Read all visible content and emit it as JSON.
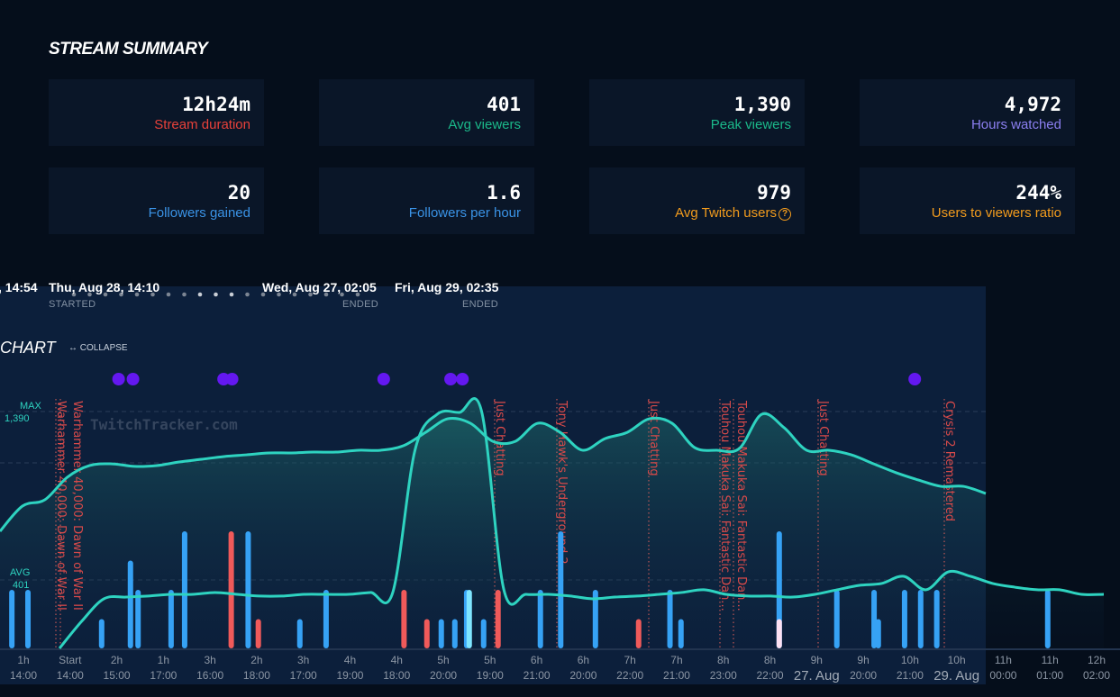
{
  "summary": {
    "title": "STREAM SUMMARY",
    "cards": [
      {
        "value": "12h24m",
        "label": "Stream duration",
        "color": "#e8413a"
      },
      {
        "value": "401",
        "label": "Avg viewers",
        "color": "#1bb98a"
      },
      {
        "value": "1,390",
        "label": "Peak viewers",
        "color": "#1bb98a"
      },
      {
        "value": "4,972",
        "label": "Hours watched",
        "color": "#8b7ff0"
      },
      {
        "value": "20",
        "label": "Followers gained",
        "color": "#3a93e6"
      },
      {
        "value": "1.6",
        "label": "Followers per hour",
        "color": "#3a93e6"
      },
      {
        "value": "979",
        "label": "Avg Twitch users",
        "color": "#f39c1d",
        "icon": "question-circle-icon",
        "icon_glyph": "?"
      },
      {
        "value": "244%",
        "label": "Users to viewers ratio",
        "color": "#f39c1d"
      }
    ]
  },
  "timeline": {
    "prev_end": ", 14:54",
    "started": {
      "date": "Thu, Aug 28, 14:10",
      "label": "STARTED"
    },
    "ended_1": {
      "date": "Wed, Aug 27, 02:05",
      "label": "ENDED"
    },
    "ended_2": {
      "date": "Fri, Aug 29, 02:35",
      "label": "ENDED"
    }
  },
  "chart_header": {
    "title": "CHART",
    "collapse_icon": "↔",
    "collapse_label": "COLLAPSE"
  },
  "watermark": "TwitchTracker.com",
  "chart_data": {
    "type": "line",
    "y_labels": {
      "max_label": "MAX",
      "max_value": "1,390",
      "avg_label": "AVG",
      "avg_value": "401"
    },
    "ylim": [
      0,
      1390
    ],
    "grid": "dashed horizontal",
    "colors": {
      "viewers": "#2ed3c0",
      "follow_bar": "#36a2f5",
      "red_bar": "#f05a5a",
      "pink_bar": "#fde0f2",
      "light_bar": "#7fe6ff",
      "event_dot": "#6418f0",
      "game_marker": "#d84a4a"
    },
    "series": [
      {
        "values": [
          687,
          835,
          872,
          1004,
          1073,
          1083,
          1068,
          1073,
          1094,
          1110,
          1126,
          1136,
          1147,
          1147,
          1152,
          1152,
          1163,
          1163,
          1189,
          1268,
          1348,
          1321,
          1215,
          1215,
          1321,
          1268,
          1163,
          1231,
          1268,
          1348,
          1321,
          1179,
          1163,
          1173,
          1374,
          1295,
          1163,
          1163,
          1136,
          1083,
          1031,
          988,
          951,
          951,
          909
        ]
      },
      {
        "values": [
          0,
          159,
          291,
          301,
          307,
          317,
          317,
          328,
          317,
          307,
          307,
          317,
          317,
          317,
          328,
          328,
          1163,
          1374,
          1385,
          1390,
          344,
          317,
          317,
          307,
          291,
          301,
          307,
          317,
          328,
          344,
          317,
          307,
          307,
          301,
          317,
          344,
          370,
          381,
          423,
          344,
          449,
          423,
          381,
          359,
          344,
          344,
          317,
          317
        ]
      }
    ],
    "bars": [
      {
        "hour": 0.14,
        "value": 5,
        "kind": "follow_bar"
      },
      {
        "hour": 0.33,
        "value": 5,
        "kind": "follow_bar"
      },
      {
        "hour": 1.2,
        "value": 2.5,
        "kind": "follow_bar"
      },
      {
        "hour": 1.54,
        "value": 7.5,
        "kind": "follow_bar"
      },
      {
        "hour": 1.63,
        "value": 5,
        "kind": "follow_bar"
      },
      {
        "hour": 2.02,
        "value": 5,
        "kind": "follow_bar"
      },
      {
        "hour": 2.18,
        "value": 10,
        "kind": "follow_bar"
      },
      {
        "hour": 2.73,
        "value": 10,
        "kind": "red_bar"
      },
      {
        "hour": 2.93,
        "value": 10,
        "kind": "follow_bar"
      },
      {
        "hour": 3.05,
        "value": 2.5,
        "kind": "red_bar"
      },
      {
        "hour": 3.54,
        "value": 2.5,
        "kind": "follow_bar"
      },
      {
        "hour": 3.85,
        "value": 5,
        "kind": "follow_bar"
      },
      {
        "hour": 4.77,
        "value": 5,
        "kind": "red_bar"
      },
      {
        "hour": 5.04,
        "value": 2.5,
        "kind": "red_bar"
      },
      {
        "hour": 5.21,
        "value": 2.5,
        "kind": "follow_bar"
      },
      {
        "hour": 5.37,
        "value": 2.5,
        "kind": "follow_bar"
      },
      {
        "hour": 5.51,
        "value": 5,
        "kind": "follow_bar"
      },
      {
        "hour": 5.54,
        "value": 5,
        "kind": "light_bar"
      },
      {
        "hour": 5.71,
        "value": 2.5,
        "kind": "follow_bar"
      },
      {
        "hour": 5.88,
        "value": 5,
        "kind": "red_bar"
      },
      {
        "hour": 6.38,
        "value": 5,
        "kind": "follow_bar"
      },
      {
        "hour": 6.62,
        "value": 10,
        "kind": "follow_bar"
      },
      {
        "hour": 7.03,
        "value": 5,
        "kind": "follow_bar"
      },
      {
        "hour": 7.54,
        "value": 2.5,
        "kind": "red_bar"
      },
      {
        "hour": 7.91,
        "value": 5,
        "kind": "follow_bar"
      },
      {
        "hour": 8.04,
        "value": 2.5,
        "kind": "follow_bar"
      },
      {
        "hour": 9.2,
        "value": 10,
        "kind": "follow_bar"
      },
      {
        "hour": 9.2,
        "value": 2.5,
        "kind": "pink_bar"
      },
      {
        "hour": 9.88,
        "value": 5,
        "kind": "follow_bar"
      },
      {
        "hour": 10.32,
        "value": 5,
        "kind": "follow_bar"
      },
      {
        "hour": 10.37,
        "value": 2.5,
        "kind": "follow_bar"
      },
      {
        "hour": 10.68,
        "value": 5,
        "kind": "follow_bar"
      },
      {
        "hour": 10.87,
        "value": 5,
        "kind": "follow_bar"
      },
      {
        "hour": 11.06,
        "value": 5,
        "kind": "follow_bar"
      },
      {
        "hour": 12.37,
        "value": 5,
        "kind": "follow_bar"
      }
    ],
    "events": [
      1.4,
      1.57,
      2.64,
      2.74,
      4.53,
      5.32,
      5.46,
      10.8
    ],
    "games": [
      {
        "hour": 0.7,
        "name": "Warhammer 40,000: Dawn of War II"
      },
      {
        "hour": 0.76,
        "name": "Warhammer 40,000: Dawn of War II"
      },
      {
        "hour": 5.88,
        "name": "Just Chatting"
      },
      {
        "hour": 6.62,
        "name": "Tony Hawk's Underground 2"
      },
      {
        "hour": 7.7,
        "name": "Just Chatting"
      },
      {
        "hour": 8.54,
        "name": "Touhou Makuka Sai: Fantastic Dan..."
      },
      {
        "hour": 8.7,
        "name": "Touhou Makuka Sai: Fantastic Dan..."
      },
      {
        "hour": 9.7,
        "name": "Just Chatting"
      },
      {
        "hour": 11.19,
        "name": "Crysis 2 Remastered"
      }
    ],
    "x_ticks_elapsed": [
      "1h",
      "Start",
      "2h",
      "1h",
      "3h",
      "2h",
      "3h",
      "4h",
      "4h",
      "5h",
      "5h",
      "6h",
      "6h",
      "7h",
      "7h",
      "8h",
      "8h",
      "9h",
      "9h",
      "10h",
      "10h",
      "11h",
      "11h",
      "12h"
    ],
    "x_ticks_clock": [
      "14:00",
      "14:00",
      "15:00",
      "17:00",
      "16:00",
      "18:00",
      "17:00",
      "19:00",
      "18:00",
      "20:00",
      "19:00",
      "21:00",
      "20:00",
      "22:00",
      "21:00",
      "23:00",
      "22:00",
      "27. Aug",
      "20:00",
      "21:00",
      "29. Aug",
      "00:00",
      "01:00",
      "02:00"
    ]
  }
}
